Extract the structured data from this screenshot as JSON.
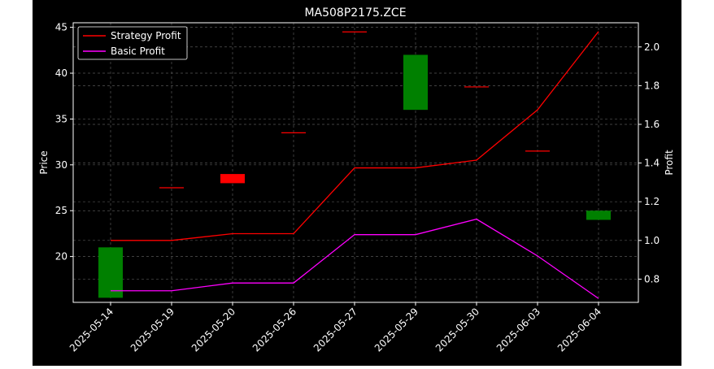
{
  "chart_data": {
    "type": "candlestick+line",
    "title": "MA508P2175.ZCE",
    "ylabel_left": "Price",
    "ylabel_right": "Profit",
    "categories": [
      "2025-05-14",
      "2025-05-19",
      "2025-05-20",
      "2025-05-26",
      "2025-05-27",
      "2025-05-29",
      "2025-05-30",
      "2025-06-03",
      "2025-06-04"
    ],
    "candles": [
      {
        "open": 15.5,
        "close": 21.0
      },
      {
        "open": 27.5,
        "close": 27.5
      },
      {
        "open": 29.0,
        "close": 28.0
      },
      {
        "open": 33.5,
        "close": 33.5
      },
      {
        "open": 44.5,
        "close": 44.5
      },
      {
        "open": 36.0,
        "close": 42.0
      },
      {
        "open": 38.5,
        "close": 38.5
      },
      {
        "open": 31.5,
        "close": 31.5
      },
      {
        "open": 24.0,
        "close": 25.0
      }
    ],
    "series": [
      {
        "name": "Strategy Profit",
        "color": "#ff0000",
        "values": [
          1.0,
          1.0,
          1.035,
          1.035,
          1.375,
          1.375,
          1.415,
          1.675,
          2.08
        ]
      },
      {
        "name": "Basic Profit",
        "color": "#ff00ff",
        "values": [
          0.74,
          0.74,
          0.78,
          0.78,
          1.03,
          1.03,
          1.11,
          0.92,
          0.7
        ]
      }
    ],
    "ylim_left": [
      15.0,
      45.5
    ],
    "ylim_right": [
      0.68,
      2.125
    ],
    "yticks_left": [
      "20",
      "25",
      "30",
      "35",
      "40",
      "45"
    ],
    "yticks_right": [
      "0.8",
      "1.0",
      "1.2",
      "1.4",
      "1.6",
      "1.8",
      "2.0"
    ],
    "grid": true,
    "legend_position": "top-left",
    "colors": {
      "background": "#000000",
      "up": "#008000",
      "down": "#ff0000",
      "text": "#ffffff",
      "grid": "#555555"
    }
  }
}
